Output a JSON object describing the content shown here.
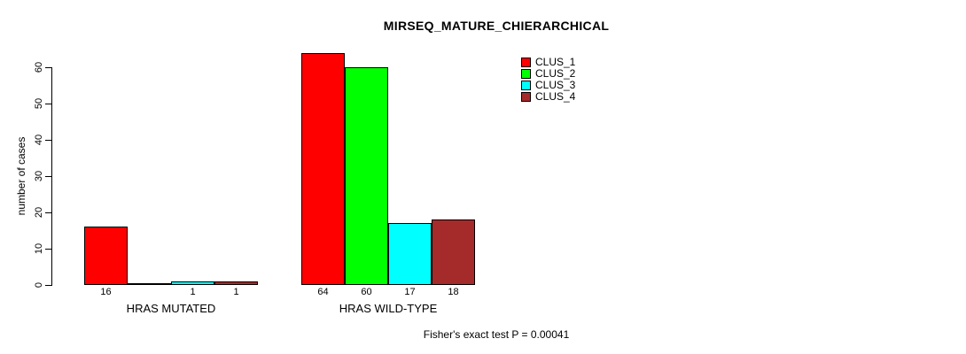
{
  "chart_data": {
    "type": "bar",
    "title": "MIRSEQ_MATURE_CHIERARCHICAL",
    "ylabel": "number of cases",
    "xlabel": "",
    "ylim": [
      0,
      64
    ],
    "yticks": [
      0,
      10,
      20,
      30,
      40,
      50,
      60
    ],
    "grid": false,
    "legend_position": "top-right-inside",
    "categories": [
      "HRAS MUTATED",
      "HRAS WILD-TYPE"
    ],
    "series": [
      {
        "name": "CLUS_1",
        "color": "#ff0000",
        "values": [
          16,
          64
        ]
      },
      {
        "name": "CLUS_2",
        "color": "#00ff00",
        "values": [
          0,
          60
        ]
      },
      {
        "name": "CLUS_3",
        "color": "#00ffff",
        "values": [
          1,
          17
        ]
      },
      {
        "name": "CLUS_4",
        "color": "#a52a2a",
        "values": [
          1,
          18
        ]
      }
    ],
    "bar_value_labels": [
      [
        "16",
        "",
        "1",
        "1"
      ],
      [
        "64",
        "60",
        "17",
        "18"
      ]
    ],
    "annotation": "Fisher's exact test P = 0.00041"
  }
}
